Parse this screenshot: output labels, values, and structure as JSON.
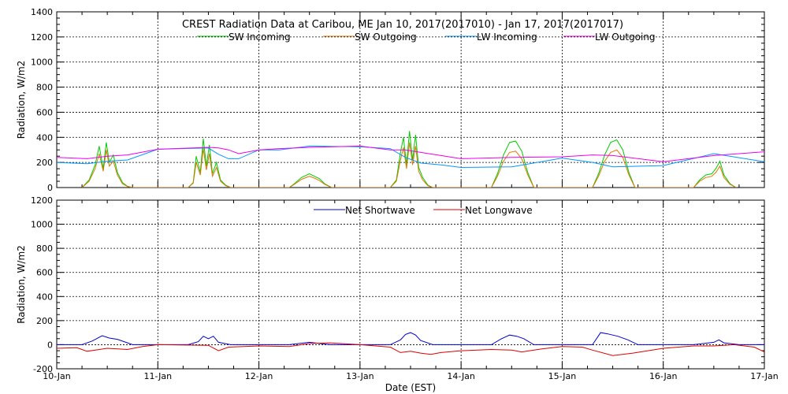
{
  "chart_data": [
    {
      "type": "line",
      "title": "CREST Radiation Data at Caribou, ME   Jan 10, 2017(2017010) - Jan 17, 2017(2017017)",
      "xlabel": "",
      "ylabel": "Radiation, W/m^2",
      "xlim": [
        0,
        7
      ],
      "ylim": [
        0,
        1400
      ],
      "yticks": [
        0,
        200,
        400,
        600,
        800,
        1000,
        1200,
        1400
      ],
      "grid": true,
      "legend_position": "top",
      "series": [
        {
          "name": "SW Incoming",
          "color": "#00cc00",
          "x": [
            0.25,
            0.32,
            0.38,
            0.42,
            0.46,
            0.49,
            0.52,
            0.56,
            0.6,
            0.65,
            0.7,
            0.75,
            1.3,
            1.35,
            1.38,
            1.42,
            1.45,
            1.48,
            1.51,
            1.54,
            1.58,
            1.62,
            1.67,
            1.72,
            2.3,
            2.35,
            2.42,
            2.5,
            2.55,
            2.6,
            2.65,
            2.72,
            3.3,
            3.36,
            3.4,
            3.43,
            3.46,
            3.49,
            3.52,
            3.55,
            3.58,
            3.62,
            3.67,
            3.72,
            4.3,
            4.36,
            4.42,
            4.48,
            4.54,
            4.6,
            4.66,
            4.72,
            5.3,
            5.36,
            5.42,
            5.48,
            5.54,
            5.6,
            5.66,
            5.72,
            6.3,
            6.36,
            6.42,
            6.48,
            6.52,
            6.56,
            6.6,
            6.66,
            6.72
          ],
          "y": [
            0,
            60,
            180,
            330,
            150,
            360,
            200,
            260,
            120,
            40,
            10,
            0,
            0,
            40,
            250,
            120,
            390,
            170,
            340,
            110,
            200,
            60,
            20,
            0,
            0,
            30,
            80,
            110,
            90,
            70,
            30,
            0,
            0,
            60,
            280,
            400,
            180,
            450,
            220,
            420,
            160,
            80,
            20,
            0,
            0,
            110,
            260,
            360,
            370,
            290,
            120,
            0,
            0,
            110,
            260,
            360,
            380,
            300,
            120,
            0,
            0,
            60,
            100,
            110,
            150,
            210,
            100,
            30,
            0
          ]
        },
        {
          "name": "SW Outgoing",
          "color": "#dd7700",
          "x": [
            0.25,
            0.32,
            0.38,
            0.42,
            0.46,
            0.49,
            0.52,
            0.56,
            0.6,
            0.65,
            0.7,
            0.75,
            1.3,
            1.35,
            1.38,
            1.42,
            1.45,
            1.48,
            1.51,
            1.54,
            1.58,
            1.62,
            1.67,
            1.72,
            2.3,
            2.35,
            2.42,
            2.5,
            2.55,
            2.6,
            2.65,
            2.72,
            3.3,
            3.36,
            3.4,
            3.43,
            3.46,
            3.49,
            3.52,
            3.55,
            3.58,
            3.62,
            3.67,
            3.72,
            4.3,
            4.36,
            4.42,
            4.48,
            4.54,
            4.6,
            4.66,
            4.72,
            5.3,
            5.36,
            5.42,
            5.48,
            5.54,
            5.6,
            5.66,
            5.72,
            6.3,
            6.36,
            6.42,
            6.48,
            6.52,
            6.56,
            6.6,
            6.66,
            6.72
          ],
          "y": [
            0,
            50,
            150,
            270,
            130,
            300,
            170,
            210,
            100,
            30,
            8,
            0,
            0,
            35,
            200,
            100,
            310,
            140,
            270,
            90,
            160,
            50,
            15,
            0,
            0,
            25,
            65,
            90,
            75,
            55,
            25,
            0,
            0,
            50,
            220,
            320,
            150,
            360,
            180,
            330,
            130,
            60,
            15,
            0,
            0,
            90,
            210,
            280,
            290,
            230,
            100,
            0,
            0,
            90,
            210,
            280,
            300,
            240,
            100,
            0,
            0,
            50,
            80,
            90,
            120,
            170,
            80,
            25,
            0
          ]
        },
        {
          "name": "LW Incoming",
          "color": "#0099ff",
          "x": [
            0,
            0.3,
            0.5,
            0.7,
            1,
            1.5,
            1.6,
            1.7,
            1.8,
            2,
            2.2,
            2.5,
            3,
            3.3,
            3.45,
            3.6,
            3.8,
            4,
            4.5,
            5,
            5.3,
            5.5,
            6,
            6.5,
            7
          ],
          "y": [
            200,
            190,
            210,
            220,
            305,
            315,
            265,
            230,
            230,
            300,
            300,
            330,
            325,
            310,
            240,
            195,
            180,
            160,
            165,
            235,
            200,
            165,
            175,
            270,
            205
          ]
        },
        {
          "name": "LW Outgoing",
          "color": "#ee00ee",
          "x": [
            0,
            0.3,
            0.5,
            0.7,
            1,
            1.5,
            1.6,
            1.7,
            1.8,
            2,
            2.2,
            2.5,
            3,
            3.3,
            3.45,
            3.6,
            3.8,
            4,
            4.5,
            5,
            5.3,
            5.5,
            6,
            6.5,
            7
          ],
          "y": [
            240,
            230,
            250,
            260,
            305,
            320,
            315,
            300,
            270,
            300,
            310,
            320,
            330,
            300,
            300,
            280,
            255,
            230,
            240,
            245,
            260,
            255,
            205,
            255,
            285
          ]
        }
      ]
    },
    {
      "type": "line",
      "title": "",
      "xlabel": "Date (EST)",
      "ylabel": "Radiation, W/m^2",
      "xlim": [
        0,
        7
      ],
      "ylim": [
        -200,
        1200
      ],
      "yticks": [
        -200,
        0,
        200,
        400,
        600,
        800,
        1000,
        1200
      ],
      "categories": [
        "10-Jan",
        "11-Jan",
        "12-Jan",
        "13-Jan",
        "14-Jan",
        "15-Jan",
        "16-Jan",
        "17-Jan"
      ],
      "grid": true,
      "legend_position": "top",
      "series": [
        {
          "name": "Net Shortwave",
          "color": "#0000cc",
          "x": [
            0,
            0.25,
            0.35,
            0.45,
            0.52,
            0.6,
            0.75,
            1,
            1.3,
            1.4,
            1.45,
            1.5,
            1.55,
            1.6,
            1.72,
            2,
            2.3,
            2.5,
            2.7,
            3,
            3.3,
            3.4,
            3.45,
            3.5,
            3.55,
            3.6,
            3.72,
            4,
            4.3,
            4.4,
            4.48,
            4.55,
            4.62,
            4.72,
            5,
            5.3,
            5.38,
            5.45,
            5.55,
            5.65,
            5.75,
            6,
            6.3,
            6.5,
            6.55,
            6.6,
            6.75,
            7
          ],
          "y": [
            0,
            0,
            30,
            75,
            55,
            45,
            0,
            0,
            0,
            25,
            70,
            50,
            70,
            20,
            0,
            0,
            0,
            20,
            0,
            0,
            0,
            40,
            85,
            100,
            80,
            35,
            0,
            0,
            0,
            50,
            80,
            70,
            50,
            0,
            0,
            0,
            100,
            90,
            70,
            40,
            0,
            0,
            0,
            20,
            40,
            15,
            0,
            0
          ]
        },
        {
          "name": "Net Longwave",
          "color": "#dd0000",
          "x": [
            0,
            0.2,
            0.3,
            0.5,
            0.7,
            0.85,
            1,
            1.5,
            1.6,
            1.7,
            2,
            2.3,
            2.5,
            2.7,
            3,
            3.3,
            3.4,
            3.5,
            3.6,
            3.7,
            3.8,
            4,
            4.3,
            4.5,
            4.6,
            4.8,
            5,
            5.2,
            5.3,
            5.5,
            5.7,
            6,
            6.3,
            6.5,
            6.7,
            6.9,
            7
          ],
          "y": [
            -30,
            -25,
            -55,
            -30,
            -40,
            -15,
            0,
            -5,
            -50,
            -20,
            -10,
            -15,
            10,
            15,
            0,
            -20,
            -65,
            -55,
            -70,
            -80,
            -65,
            -50,
            -40,
            -45,
            -60,
            -35,
            -15,
            -20,
            -45,
            -90,
            -70,
            -30,
            -10,
            -10,
            0,
            -20,
            -60
          ]
        }
      ]
    }
  ]
}
